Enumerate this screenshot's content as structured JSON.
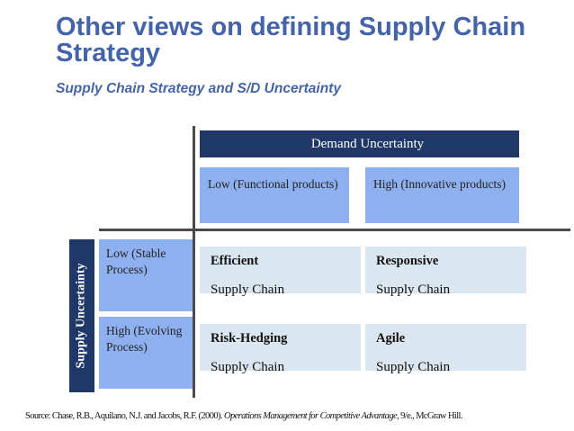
{
  "title": "Other views on defining Supply Chain Strategy",
  "subtitle": "Supply Chain Strategy and S/D Uncertainty",
  "matrix": {
    "demand_header": "Demand Uncertainty",
    "supply_header": "Supply Uncertainty",
    "columns": [
      {
        "label": "Low (Functional products)"
      },
      {
        "label": "High (Innovative products)"
      }
    ],
    "rows": [
      {
        "label": "Low (Stable Process)"
      },
      {
        "label": "High (Evolving Process)"
      }
    ],
    "cells": [
      {
        "title": "Efficient",
        "subtitle": "Supply Chain"
      },
      {
        "title": "Responsive",
        "subtitle": "Supply Chain"
      },
      {
        "title": "Risk-Hedging",
        "subtitle": "Supply Chain"
      },
      {
        "title": "Agile",
        "subtitle": "Supply Chain"
      }
    ]
  },
  "source": {
    "prefix": "Source: Chase, R.B., Aquilano, N.J. and Jacobs, R.F. (2000). ",
    "italic": "Operations Management for Competitive Advantage",
    "suffix": ", 9/e., McGraw Hill."
  }
}
